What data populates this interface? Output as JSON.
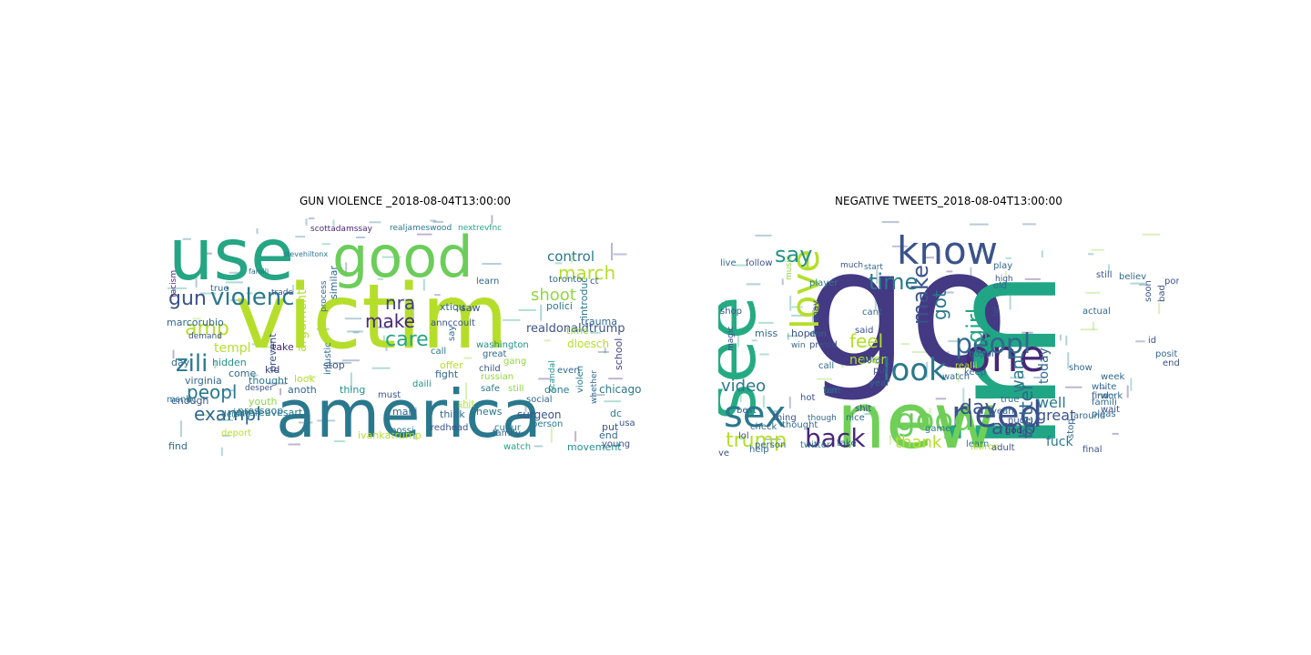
{
  "figure": {
    "panels": [
      {
        "title": "GUN VIOLENCE _2018-08-04T13:00:00",
        "words": [
          {
            "text": "victim",
            "color": "#b5de2b"
          },
          {
            "text": "america",
            "color": "#2a788e"
          },
          {
            "text": "use",
            "color": "#25a584"
          },
          {
            "text": "good",
            "color": "#6ccd5a"
          },
          {
            "text": "zili",
            "color": "#2a788e"
          },
          {
            "text": "gun",
            "color": "#3b528b"
          },
          {
            "text": "violenc",
            "color": "#2a788e"
          },
          {
            "text": "amp",
            "color": "#b5de2b"
          },
          {
            "text": "peopl",
            "color": "#2a788e"
          },
          {
            "text": "exampl",
            "color": "#31688e"
          },
          {
            "text": "march",
            "color": "#b5de2b"
          },
          {
            "text": "shoot",
            "color": "#90d743"
          },
          {
            "text": "nra",
            "color": "#414487"
          },
          {
            "text": "care",
            "color": "#25a584"
          },
          {
            "text": "make",
            "color": "#482878"
          },
          {
            "text": "control",
            "color": "#2a788e"
          },
          {
            "text": "realdonaldtrump",
            "color": "#3b528b"
          },
          {
            "text": "trauma",
            "color": "#31688e"
          },
          {
            "text": "dloesch",
            "color": "#b5de2b"
          },
          {
            "text": "school",
            "color": "#414487"
          },
          {
            "text": "chicago",
            "color": "#2a788e"
          },
          {
            "text": "surgeon",
            "color": "#3b528b"
          },
          {
            "text": "movement",
            "color": "#21918c"
          },
          {
            "text": "junereevesart",
            "color": "#2a788e"
          },
          {
            "text": "ivankatrump",
            "color": "#b5de2b"
          },
          {
            "text": "marcorubio",
            "color": "#31688e"
          },
          {
            "text": "templ",
            "color": "#b5de2b"
          },
          {
            "text": "youth",
            "color": "#90d743"
          },
          {
            "text": "pressgop",
            "color": "#2a788e"
          },
          {
            "text": "argument",
            "color": "#b5de2b"
          },
          {
            "text": "similar",
            "color": "#31688e"
          },
          {
            "text": "scottadamssay",
            "color": "#482878"
          },
          {
            "text": "realjameswood",
            "color": "#2a788e"
          },
          {
            "text": "nextrevfnc",
            "color": "#25a584"
          },
          {
            "text": "toronto",
            "color": "#31688e"
          },
          {
            "text": "polici",
            "color": "#2a788e"
          },
          {
            "text": "washington",
            "color": "#21918c"
          },
          {
            "text": "annccoult",
            "color": "#3b528b"
          },
          {
            "text": "xtiqu",
            "color": "#31688e"
          },
          {
            "text": "introduc",
            "color": "#2a788e"
          },
          {
            "text": "time",
            "color": "#90d743"
          },
          {
            "text": "offer",
            "color": "#b5de2b"
          },
          {
            "text": "fight",
            "color": "#31688e"
          },
          {
            "text": "stop",
            "color": "#3b528b"
          },
          {
            "text": "look",
            "color": "#b5de2b"
          },
          {
            "text": "kid",
            "color": "#414487"
          },
          {
            "text": "news",
            "color": "#2a788e"
          },
          {
            "text": "think",
            "color": "#31688e"
          },
          {
            "text": "thing",
            "color": "#21918c"
          },
          {
            "text": "must",
            "color": "#3b528b"
          },
          {
            "text": "anoth",
            "color": "#31688e"
          },
          {
            "text": "redhead",
            "color": "#3b528b"
          },
          {
            "text": "cultur",
            "color": "#2a788e"
          },
          {
            "text": "person",
            "color": "#2a788e"
          },
          {
            "text": "watch",
            "color": "#25a584"
          },
          {
            "text": "end",
            "color": "#31688e"
          },
          {
            "text": "put",
            "color": "#3b528b"
          },
          {
            "text": "dc",
            "color": "#2a788e"
          },
          {
            "text": "usa",
            "color": "#3b528b"
          },
          {
            "text": "find",
            "color": "#31688e"
          },
          {
            "text": "enough",
            "color": "#3b528b"
          },
          {
            "text": "day",
            "color": "#31688e"
          },
          {
            "text": "thought",
            "color": "#2a788e"
          },
          {
            "text": "hidden",
            "color": "#21918c"
          },
          {
            "text": "virginia",
            "color": "#31688e"
          },
          {
            "text": "msnbc",
            "color": "#2a788e"
          },
          {
            "text": "demand",
            "color": "#3b528b"
          },
          {
            "text": "true",
            "color": "#31688e"
          },
          {
            "text": "safe",
            "color": "#2a788e"
          },
          {
            "text": "shit",
            "color": "#b5de2b"
          },
          {
            "text": "still",
            "color": "#90d743"
          },
          {
            "text": "child",
            "color": "#3b528b"
          },
          {
            "text": "great",
            "color": "#31688e"
          },
          {
            "text": "gang",
            "color": "#90d743"
          },
          {
            "text": "done",
            "color": "#2a788e"
          },
          {
            "text": "social",
            "color": "#31688e"
          },
          {
            "text": "saw",
            "color": "#3b528b"
          },
          {
            "text": "mani",
            "color": "#31688e"
          },
          {
            "text": "come",
            "color": "#31688e"
          },
          {
            "text": "prevent",
            "color": "#3b528b"
          },
          {
            "text": "injustic",
            "color": "#31688e"
          },
          {
            "text": "daili",
            "color": "#21918c"
          },
          {
            "text": "russian",
            "color": "#90d743"
          },
          {
            "text": "learn",
            "color": "#31688e"
          },
          {
            "text": "say",
            "color": "#31688e"
          },
          {
            "text": "call",
            "color": "#2a788e"
          },
          {
            "text": "take",
            "color": "#482878"
          },
          {
            "text": "family",
            "color": "#31688e"
          },
          {
            "text": "young",
            "color": "#3b528b"
          },
          {
            "text": "violen",
            "color": "#2a788e"
          },
          {
            "text": "everi",
            "color": "#31688e"
          },
          {
            "text": "scandal",
            "color": "#21918c"
          },
          {
            "text": "ct",
            "color": "#3b528b"
          },
          {
            "text": "stevehiltonx",
            "color": "#2a788e"
          },
          {
            "text": "famili",
            "color": "#31688e"
          },
          {
            "text": "trade",
            "color": "#3b528b"
          },
          {
            "text": "process",
            "color": "#31688e"
          },
          {
            "text": "possi",
            "color": "#2a788e"
          },
          {
            "text": "whether",
            "color": "#31688e"
          },
          {
            "text": "desper",
            "color": "#3b528b"
          },
          {
            "text": "derang",
            "color": "#2a788e"
          },
          {
            "text": "deport",
            "color": "#b5de2b"
          },
          {
            "text": "racism",
            "color": "#482878"
          }
        ]
      },
      {
        "title": "NEGATIVE TWEETS_2018-08-04T13:00:00",
        "words": [
          {
            "text": "go",
            "color": "#443983"
          },
          {
            "text": "im",
            "color": "#21a685"
          },
          {
            "text": "new",
            "color": "#70cf57"
          },
          {
            "text": "see",
            "color": "#25ab82"
          },
          {
            "text": "know",
            "color": "#3b528b"
          },
          {
            "text": "love",
            "color": "#b5de2b"
          },
          {
            "text": "one",
            "color": "#482878"
          },
          {
            "text": "look",
            "color": "#2a788e"
          },
          {
            "text": "need",
            "color": "#3b528b"
          },
          {
            "text": "sex",
            "color": "#2a788e"
          },
          {
            "text": "good",
            "color": "#6ccd5a"
          },
          {
            "text": "back",
            "color": "#482878"
          },
          {
            "text": "peopl",
            "color": "#31688e"
          },
          {
            "text": "girl",
            "color": "#25a584"
          },
          {
            "text": "make",
            "color": "#3b528b"
          },
          {
            "text": "time",
            "color": "#2a788e"
          },
          {
            "text": "got",
            "color": "#2a788e"
          },
          {
            "text": "say",
            "color": "#21918c"
          },
          {
            "text": "feel",
            "color": "#b5de2b"
          },
          {
            "text": "day",
            "color": "#3b528b"
          },
          {
            "text": "video",
            "color": "#2a788e"
          },
          {
            "text": "trump",
            "color": "#b5de2b"
          },
          {
            "text": "amp",
            "color": "#3b528b"
          },
          {
            "text": "better",
            "color": "#31688e"
          },
          {
            "text": "want",
            "color": "#2a788e"
          },
          {
            "text": "today",
            "color": "#31688e"
          },
          {
            "text": "well",
            "color": "#2a788e"
          },
          {
            "text": "great",
            "color": "#3b528b"
          },
          {
            "text": "fuck",
            "color": "#2a788e"
          },
          {
            "text": "thank",
            "color": "#b5de2b"
          },
          {
            "text": "never",
            "color": "#b5de2b"
          },
          {
            "text": "miss",
            "color": "#31688e"
          },
          {
            "text": "hope",
            "color": "#3b528b"
          },
          {
            "text": "shop",
            "color": "#3b528b"
          },
          {
            "text": "live",
            "color": "#31688e"
          },
          {
            "text": "follow",
            "color": "#3b528b"
          },
          {
            "text": "player",
            "color": "#2a788e"
          },
          {
            "text": "music",
            "color": "#90d743"
          },
          {
            "text": "don",
            "color": "#31688e"
          },
          {
            "text": "presid",
            "color": "#3b528b"
          },
          {
            "text": "realdonaldtrump",
            "color": "#31688e"
          },
          {
            "text": "said",
            "color": "#3b528b"
          },
          {
            "text": "cant",
            "color": "#31688e"
          },
          {
            "text": "shit",
            "color": "#3b528b"
          },
          {
            "text": "nice",
            "color": "#31688e"
          },
          {
            "text": "much",
            "color": "#3b528b"
          },
          {
            "text": "start",
            "color": "#31688e"
          },
          {
            "text": "word",
            "color": "#31688e"
          },
          {
            "text": "put",
            "color": "#3b528b"
          },
          {
            "text": "year",
            "color": "#31688e"
          },
          {
            "text": "game",
            "color": "#2a788e"
          },
          {
            "text": "watch",
            "color": "#31688e"
          },
          {
            "text": "realli",
            "color": "#b5de2b"
          },
          {
            "text": "true",
            "color": "#31688e"
          },
          {
            "text": "yeah",
            "color": "#31688e"
          },
          {
            "text": "nude",
            "color": "#3b528b"
          },
          {
            "text": "learn",
            "color": "#2a788e"
          },
          {
            "text": "lebron",
            "color": "#b5de2b"
          },
          {
            "text": "adult",
            "color": "#3b528b"
          },
          {
            "text": "god",
            "color": "#482878"
          },
          {
            "text": "stop",
            "color": "#31688e"
          },
          {
            "text": "final",
            "color": "#3b528b"
          },
          {
            "text": "around",
            "color": "#31688e"
          },
          {
            "text": "pleas",
            "color": "#31688e"
          },
          {
            "text": "wait",
            "color": "#3b528b"
          },
          {
            "text": "white",
            "color": "#31688e"
          },
          {
            "text": "find",
            "color": "#3b528b"
          },
          {
            "text": "famili",
            "color": "#31688e"
          },
          {
            "text": "show",
            "color": "#31688e"
          },
          {
            "text": "still",
            "color": "#3b528b"
          },
          {
            "text": "believ",
            "color": "#31688e"
          },
          {
            "text": "let",
            "color": "#3b528b"
          },
          {
            "text": "old",
            "color": "#31688e"
          },
          {
            "text": "high",
            "color": "#3b528b"
          },
          {
            "text": "play",
            "color": "#31688e"
          },
          {
            "text": "happi",
            "color": "#31688e"
          },
          {
            "text": "lol",
            "color": "#3b528b"
          },
          {
            "text": "best",
            "color": "#31688e"
          },
          {
            "text": "check",
            "color": "#31688e"
          },
          {
            "text": "thing",
            "color": "#3b528b"
          },
          {
            "text": "thought",
            "color": "#31688e"
          },
          {
            "text": "twitter",
            "color": "#2a788e"
          },
          {
            "text": "person",
            "color": "#31688e"
          },
          {
            "text": "take",
            "color": "#31688e"
          },
          {
            "text": "help",
            "color": "#31688e"
          },
          {
            "text": "hot",
            "color": "#3b528b"
          },
          {
            "text": "ye",
            "color": "#3b528b"
          },
          {
            "text": "fan",
            "color": "#31688e"
          },
          {
            "text": "call",
            "color": "#31688e"
          },
          {
            "text": "keep",
            "color": "#31688e"
          },
          {
            "text": "posit",
            "color": "#31688e"
          },
          {
            "text": "end",
            "color": "#3b528b"
          },
          {
            "text": "bad",
            "color": "#3b528b"
          },
          {
            "text": "week",
            "color": "#31688e"
          },
          {
            "text": "work",
            "color": "#31688e"
          },
          {
            "text": "soon",
            "color": "#3b528b"
          },
          {
            "text": "black",
            "color": "#3b528b"
          },
          {
            "text": "win",
            "color": "#31688e"
          },
          {
            "text": "may",
            "color": "#3b528b"
          },
          {
            "text": "part",
            "color": "#31688e"
          },
          {
            "text": "though",
            "color": "#31688e"
          },
          {
            "text": "magic",
            "color": "#3b528b"
          },
          {
            "text": "actual",
            "color": "#31688e"
          },
          {
            "text": "porn",
            "color": "#3b528b"
          },
          {
            "text": "id",
            "color": "#3b528b"
          }
        ]
      }
    ]
  }
}
